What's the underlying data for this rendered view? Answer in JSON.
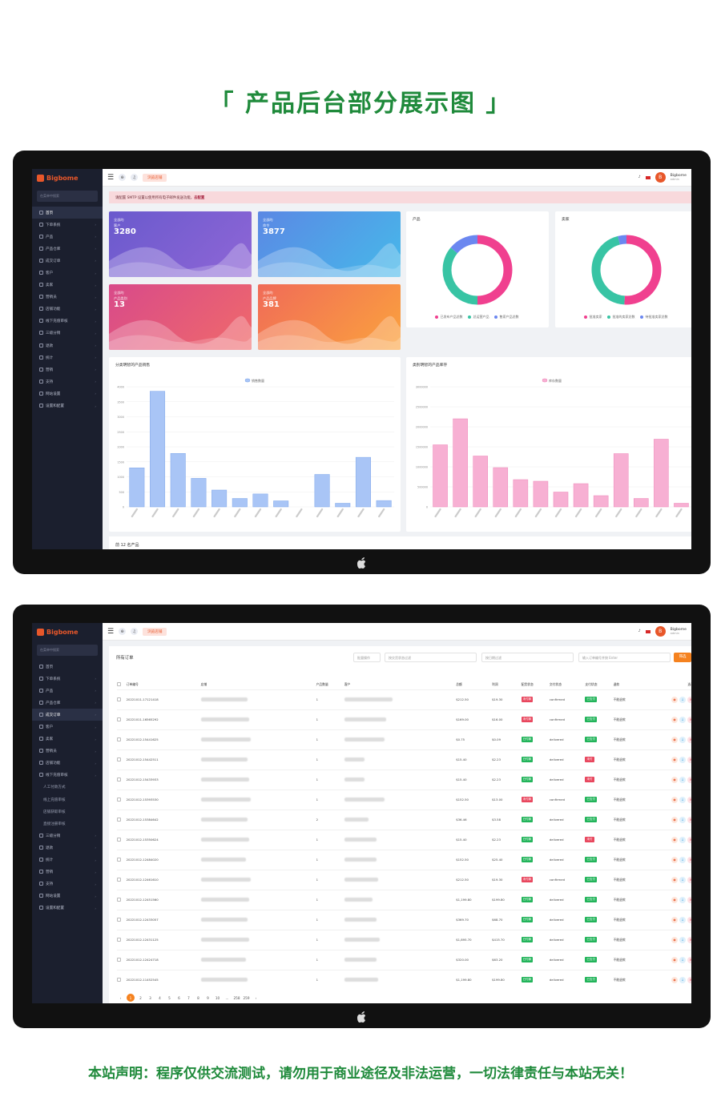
{
  "headline": "「 产品后台部分展示图 」",
  "footer_note": "本站声明：程序仅供交流测试，请勿用于商业途径及非法运营，一切法律责任与本站无关！",
  "brand": {
    "name": "Bigbome",
    "accent": "#e8572a"
  },
  "sidebar": {
    "search_placeholder": "在菜单中搜索",
    "items_dashboard": [
      {
        "label": "首页",
        "active": true
      },
      {
        "label": "下单系统"
      },
      {
        "label": "产品"
      },
      {
        "label": "产品仓库"
      },
      {
        "label": "成交订单"
      },
      {
        "label": "客户"
      },
      {
        "label": "卖家"
      },
      {
        "label": "营销员"
      },
      {
        "label": "店铺功能"
      },
      {
        "label": "线下充值审核"
      },
      {
        "label": "三级分销"
      },
      {
        "label": "退款"
      },
      {
        "label": "统计"
      },
      {
        "label": "营销"
      },
      {
        "label": "支持"
      },
      {
        "label": "网站设置"
      },
      {
        "label": "设置和配置"
      }
    ],
    "items_orders": [
      {
        "label": "首页"
      },
      {
        "label": "下单系统"
      },
      {
        "label": "产品"
      },
      {
        "label": "产品仓库"
      },
      {
        "label": "成交订单",
        "active": true
      },
      {
        "label": "客户"
      },
      {
        "label": "卖家"
      },
      {
        "label": "营销员"
      },
      {
        "label": "店铺功能"
      },
      {
        "label": "线下充值审核"
      },
      {
        "label": "人工付款方式",
        "sub": true
      },
      {
        "label": "线上充值审核",
        "sub": true
      },
      {
        "label": "店铺获取审核",
        "sub": true
      },
      {
        "label": "直接注册审核",
        "sub": true
      },
      {
        "label": "三级分销"
      },
      {
        "label": "退款"
      },
      {
        "label": "统计"
      },
      {
        "label": "营销"
      },
      {
        "label": "支持"
      },
      {
        "label": "网站设置"
      },
      {
        "label": "设置和配置"
      }
    ]
  },
  "topbar": {
    "store_button": "浏览店铺",
    "user_name": "Bigbome",
    "user_role": "admin"
  },
  "notice": {
    "text": "请配置 SMTP 设置以使用所有电子邮件发送功能，",
    "link": "去配置"
  },
  "stat_cards": [
    {
      "label1": "全部的",
      "label2": "客户",
      "value": "3280",
      "colors": [
        "#6a5acd",
        "#8f66d6"
      ]
    },
    {
      "label1": "全部的",
      "label2": "命令",
      "value": "3877",
      "colors": [
        "#5b88e4",
        "#46b9ea"
      ]
    },
    {
      "label1": "全部的",
      "label2": "产品类别",
      "value": "13",
      "colors": [
        "#d84a8a",
        "#f06a6a"
      ]
    },
    {
      "label1": "全部的",
      "label2": "产品品牌",
      "value": "381",
      "colors": [
        "#f06b58",
        "#fba33d"
      ]
    }
  ],
  "donut_products": {
    "title": "产品",
    "legend": [
      "已发布产品总数",
      "总运营产品",
      "售家产品总数"
    ],
    "values": [
      50,
      36,
      14
    ],
    "colors": [
      "#f0408f",
      "#38c4a4",
      "#6b87f0"
    ]
  },
  "donut_sellers": {
    "title": "卖家",
    "legend": [
      "批准卖家",
      "批准的卖家总数",
      "待批准卖家总数"
    ],
    "values": [
      51,
      45,
      4
    ],
    "colors": [
      "#f0408f",
      "#38c4a4",
      "#6b87f0"
    ]
  },
  "chart_data": [
    {
      "type": "bar",
      "title": "分类明智的产品销售",
      "series": [
        {
          "name": "销售数量",
          "values": [
            1300,
            3850,
            1780,
            950,
            560,
            280,
            430,
            200,
            0,
            1080,
            120,
            1650,
            210
          ]
        }
      ],
      "ylim": [
        0,
        4000
      ],
      "yticks": [
        "4000",
        "3500",
        "3000",
        "2500",
        "2000",
        "1500",
        "1000",
        "500",
        "0"
      ],
      "color": "#a9c5f6",
      "border": "#7fa6ea"
    },
    {
      "type": "bar",
      "title": "类别明智的产品库存",
      "series": [
        {
          "name": "库存数量",
          "values": [
            1550000,
            2200000,
            1270000,
            980000,
            680000,
            640000,
            370000,
            580000,
            280000,
            1330000,
            210000,
            1690000,
            90000
          ]
        }
      ],
      "ylim": [
        0,
        3000000
      ],
      "yticks": [
        "3000000",
        "2500000",
        "2000000",
        "1500000",
        "1000000",
        "500000",
        "0"
      ],
      "color": "#f7b0d3",
      "border": "#ee86b8"
    }
  ],
  "top12_title": "前 12 名产品",
  "orders": {
    "title": "所有订单",
    "bulk_label": "批量操作",
    "filter_status_placeholder": "按交货状态过滤",
    "date_placeholder": "按日期过滤",
    "search_placeholder": "输入订单编号并按 Enter",
    "search_button": "筛选",
    "columns": [
      "订单编号",
      "店铺",
      "产品数量",
      "客户",
      "总额",
      "利润",
      "配货状态",
      "交付状态",
      "支付状态",
      "退款",
      "选项"
    ],
    "rows": [
      {
        "id": "20221011-17121418",
        "qty": "1",
        "amount": "$212.50",
        "profit": "$19.30",
        "pay": "未付款",
        "pay_c": "r",
        "delivery": "confirmed",
        "pstatus": "已支付",
        "ps_c": "g",
        "refund": "不能退款"
      },
      {
        "id": "20221011-16565292",
        "qty": "1",
        "amount": "$169.00",
        "profit": "$16.00",
        "pay": "未付款",
        "pay_c": "r",
        "delivery": "confirmed",
        "pstatus": "已支付",
        "ps_c": "g",
        "refund": "不能退款"
      },
      {
        "id": "20221012-15441625",
        "qty": "1",
        "amount": "$0.75",
        "profit": "$0.09",
        "pay": "已付款",
        "pay_c": "g",
        "delivery": "delivered",
        "pstatus": "已支付",
        "ps_c": "g",
        "refund": "不能退款"
      },
      {
        "id": "20221012-15442511",
        "qty": "1",
        "amount": "$15.40",
        "profit": "$2.23",
        "pay": "已付款",
        "pay_c": "g",
        "delivery": "delivered",
        "pstatus": "未付",
        "ps_c": "r",
        "refund": "不能退款"
      },
      {
        "id": "20221012-15433933",
        "qty": "1",
        "amount": "$15.40",
        "profit": "$2.23",
        "pay": "已付款",
        "pay_c": "g",
        "delivery": "delivered",
        "pstatus": "未付",
        "ps_c": "r",
        "refund": "不能退款"
      },
      {
        "id": "20221012-15393530",
        "qty": "1",
        "amount": "$152.50",
        "profit": "$13.00",
        "pay": "未付款",
        "pay_c": "r",
        "delivery": "confirmed",
        "pstatus": "已支付",
        "ps_c": "g",
        "refund": "不能退款"
      },
      {
        "id": "20221012-15384642",
        "qty": "2",
        "amount": "$36.46",
        "profit": "$3.58",
        "pay": "已付款",
        "pay_c": "g",
        "delivery": "delivered",
        "pstatus": "已支付",
        "ps_c": "g",
        "refund": "不能退款"
      },
      {
        "id": "20221012-15350624",
        "qty": "1",
        "amount": "$15.40",
        "profit": "$2.23",
        "pay": "已付款",
        "pay_c": "g",
        "delivery": "delivered",
        "pstatus": "未付",
        "ps_c": "r",
        "refund": "不能退款"
      },
      {
        "id": "20221012-12484020",
        "qty": "1",
        "amount": "$152.50",
        "profit": "$25.40",
        "pay": "已付款",
        "pay_c": "g",
        "delivery": "delivered",
        "pstatus": "已支付",
        "ps_c": "g",
        "refund": "不能退款"
      },
      {
        "id": "20221012-12461610",
        "qty": "1",
        "amount": "$212.50",
        "profit": "$19.30",
        "pay": "未付款",
        "pay_c": "r",
        "delivery": "confirmed",
        "pstatus": "已支付",
        "ps_c": "g",
        "refund": "不能退款"
      },
      {
        "id": "20221012-12451560",
        "qty": "1",
        "amount": "$1,199.80",
        "profit": "$199.80",
        "pay": "已付款",
        "pay_c": "g",
        "delivery": "delivered",
        "pstatus": "已支付",
        "ps_c": "g",
        "refund": "不能退款"
      },
      {
        "id": "20221012-12433057",
        "qty": "1",
        "amount": "$369.70",
        "profit": "$68.70",
        "pay": "已付款",
        "pay_c": "g",
        "delivery": "delivered",
        "pstatus": "已支付",
        "ps_c": "g",
        "refund": "不能退款"
      },
      {
        "id": "20221012-12431125",
        "qty": "1",
        "amount": "$1,895.70",
        "profit": "$415.70",
        "pay": "已付款",
        "pay_c": "g",
        "delivery": "delivered",
        "pstatus": "已支付",
        "ps_c": "g",
        "refund": "不能退款"
      },
      {
        "id": "20221012-12424718",
        "qty": "1",
        "amount": "$320.00",
        "profit": "$63.20",
        "pay": "已付款",
        "pay_c": "g",
        "delivery": "delivered",
        "pstatus": "已支付",
        "ps_c": "g",
        "refund": "不能退款"
      },
      {
        "id": "20221012-11452545",
        "qty": "1",
        "amount": "$1,199.80",
        "profit": "$199.80",
        "pay": "已付款",
        "pay_c": "g",
        "delivery": "delivered",
        "pstatus": "已支付",
        "ps_c": "g",
        "refund": "不能退款"
      }
    ],
    "pages": [
      "1",
      "2",
      "3",
      "4",
      "5",
      "6",
      "7",
      "8",
      "9",
      "10",
      "...",
      "258",
      "259",
      "›"
    ]
  }
}
